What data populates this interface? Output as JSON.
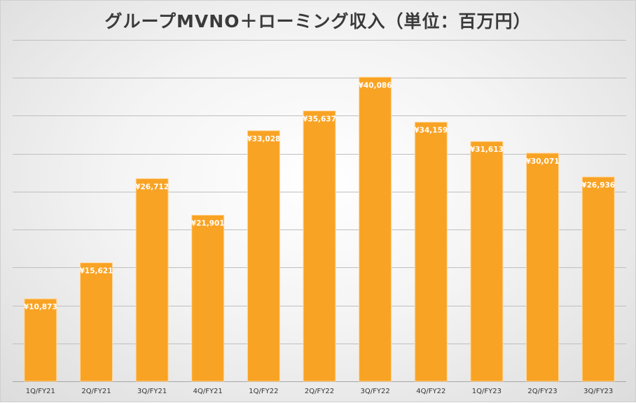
{
  "chart_data": {
    "type": "bar",
    "title": "グループMVNO＋ローミング収入（単位：百万円）",
    "categories": [
      "1Q/FY21",
      "2Q/FY21",
      "3Q/FY21",
      "4Q/FY21",
      "1Q/FY22",
      "2Q/FY22",
      "3Q/FY22",
      "4Q/FY22",
      "1Q/FY23",
      "2Q/FY23",
      "3Q/FY23"
    ],
    "values": [
      10873,
      15621,
      26712,
      21901,
      33028,
      35637,
      40086,
      34159,
      31613,
      30071,
      26936
    ],
    "data_labels": [
      "¥10,873",
      "¥15,621",
      "¥26,712",
      "¥21,901",
      "¥33,028",
      "¥35,637",
      "¥40,086",
      "¥34,159",
      "¥31,613",
      "¥30,071",
      "¥26,936"
    ],
    "ylim": [
      0,
      45000
    ],
    "grid": true,
    "legend": "none",
    "bar_color": "#F9A324",
    "bar_border_color": "#FFD9A0",
    "grid_color": "#BFBFBF"
  }
}
